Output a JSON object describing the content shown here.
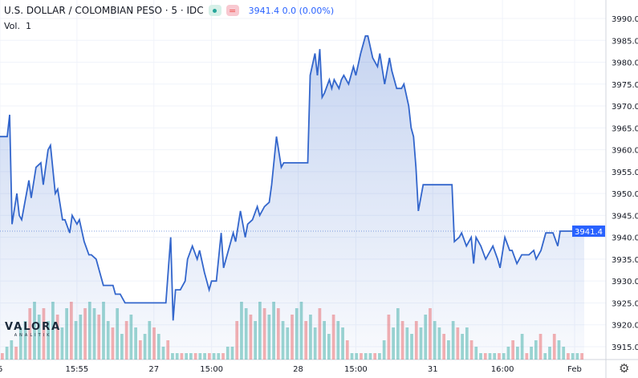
{
  "header": {
    "title": "U.S. DOLLAR / COLOMBIAN PESO · 5 · IDC",
    "last": "3941.4",
    "change": "0.0 (0.00%)",
    "volume_label": "Vol.",
    "volume_value": "1",
    "market_status": "open",
    "colors": {
      "line": "#3366cc",
      "up": "#26a69a",
      "down": "#ef5350",
      "accent": "#2962ff"
    }
  },
  "logo": {
    "name": "VALORA",
    "sub": "ANALITIK"
  },
  "settings_icon": "gear-icon",
  "chart_data": {
    "type": "area",
    "title": "U.S. DOLLAR / COLOMBIAN PESO · 5 · IDC",
    "ylim": [
      3912,
      3992
    ],
    "yticks": [
      3990.0,
      3985.0,
      3980.0,
      3975.0,
      3970.0,
      3965.0,
      3960.0,
      3955.0,
      3950.0,
      3945.0,
      3940.0,
      3935.0,
      3930.0,
      3925.0,
      3920.0,
      3915.0
    ],
    "xtick_labels": [
      {
        "label": "6",
        "bar": 0
      },
      {
        "label": "15:55",
        "bar": 32
      },
      {
        "label": "27",
        "bar": 64
      },
      {
        "label": "15:00",
        "bar": 88
      },
      {
        "label": "28",
        "bar": 124
      },
      {
        "label": "15:00",
        "bar": 148
      },
      {
        "label": "31",
        "bar": 180
      },
      {
        "label": "16:00",
        "bar": 209
      },
      {
        "label": "Feb",
        "bar": 239
      }
    ],
    "last_value": 3941.4,
    "grid": true,
    "series": [
      {
        "values": [
          [
            0,
            3963
          ],
          [
            3,
            3963
          ],
          [
            4,
            3968
          ],
          [
            5,
            3943
          ],
          [
            7,
            3950
          ],
          [
            8,
            3945
          ],
          [
            9,
            3944
          ],
          [
            12,
            3953
          ],
          [
            13,
            3949
          ],
          [
            15,
            3956
          ],
          [
            17,
            3957
          ],
          [
            18,
            3952
          ],
          [
            20,
            3960
          ],
          [
            21,
            3961
          ],
          [
            23,
            3950
          ],
          [
            24,
            3951
          ],
          [
            26,
            3944
          ],
          [
            27,
            3944
          ],
          [
            29,
            3941
          ],
          [
            30,
            3945
          ],
          [
            32,
            3943
          ],
          [
            33,
            3944
          ],
          [
            35,
            3939
          ],
          [
            37,
            3936
          ],
          [
            38,
            3936
          ],
          [
            40,
            3935
          ],
          [
            42,
            3931
          ],
          [
            43,
            3929
          ],
          [
            47,
            3929
          ],
          [
            48,
            3927
          ],
          [
            50,
            3927
          ],
          [
            52,
            3925
          ],
          [
            53,
            3925
          ],
          [
            68,
            3925
          ],
          [
            69,
            3925
          ],
          [
            71,
            3940
          ],
          [
            72,
            3921
          ],
          [
            73,
            3928
          ],
          [
            75,
            3928
          ],
          [
            77,
            3930
          ],
          [
            78,
            3935
          ],
          [
            80,
            3938
          ],
          [
            82,
            3935
          ],
          [
            83,
            3937
          ],
          [
            85,
            3932
          ],
          [
            87,
            3928
          ],
          [
            88,
            3930
          ],
          [
            90,
            3930
          ],
          [
            92,
            3941
          ],
          [
            93,
            3933
          ],
          [
            95,
            3937
          ],
          [
            97,
            3941
          ],
          [
            98,
            3939
          ],
          [
            100,
            3946
          ],
          [
            102,
            3940
          ],
          [
            103,
            3943
          ],
          [
            105,
            3944
          ],
          [
            107,
            3947
          ],
          [
            108,
            3945
          ],
          [
            110,
            3947
          ],
          [
            112,
            3948
          ],
          [
            113,
            3952
          ],
          [
            115,
            3963
          ],
          [
            117,
            3956
          ],
          [
            118,
            3957
          ],
          [
            128,
            3957
          ],
          [
            129,
            3977
          ],
          [
            131,
            3982
          ],
          [
            132,
            3977
          ],
          [
            133,
            3983
          ],
          [
            134,
            3972
          ],
          [
            135,
            3973
          ],
          [
            137,
            3976
          ],
          [
            138,
            3974
          ],
          [
            139,
            3976
          ],
          [
            141,
            3974
          ],
          [
            142,
            3976
          ],
          [
            143,
            3977
          ],
          [
            145,
            3975
          ],
          [
            147,
            3979
          ],
          [
            148,
            3977
          ],
          [
            150,
            3982
          ],
          [
            152,
            3986
          ],
          [
            153,
            3986
          ],
          [
            155,
            3981
          ],
          [
            157,
            3979
          ],
          [
            158,
            3982
          ],
          [
            160,
            3975
          ],
          [
            162,
            3981
          ],
          [
            163,
            3978
          ],
          [
            165,
            3974
          ],
          [
            167,
            3974
          ],
          [
            168,
            3975
          ],
          [
            170,
            3970
          ],
          [
            171,
            3965
          ],
          [
            172,
            3963
          ],
          [
            173,
            3956
          ],
          [
            174,
            3946
          ],
          [
            176,
            3952
          ],
          [
            188,
            3952
          ],
          [
            189,
            3939
          ],
          [
            191,
            3940
          ],
          [
            192,
            3941
          ],
          [
            194,
            3938
          ],
          [
            196,
            3940
          ],
          [
            197,
            3934
          ],
          [
            198,
            3940
          ],
          [
            200,
            3938
          ],
          [
            202,
            3935
          ],
          [
            203,
            3936
          ],
          [
            205,
            3938
          ],
          [
            207,
            3935
          ],
          [
            208,
            3933
          ],
          [
            210,
            3940
          ],
          [
            212,
            3937
          ],
          [
            213,
            3937
          ],
          [
            215,
            3934
          ],
          [
            217,
            3936
          ],
          [
            220,
            3936
          ],
          [
            222,
            3937
          ],
          [
            223,
            3935
          ],
          [
            225,
            3937
          ],
          [
            227,
            3941
          ],
          [
            230,
            3941
          ],
          [
            232,
            3938
          ],
          [
            233,
            3941.4
          ],
          [
            243,
            3941.4
          ]
        ]
      }
    ],
    "volume": [
      1,
      2,
      3,
      2,
      5,
      6,
      8,
      9,
      7,
      8,
      6,
      9,
      7,
      5,
      8,
      9,
      6,
      7,
      8,
      9,
      8,
      7,
      9,
      6,
      5,
      8,
      4,
      6,
      7,
      5,
      3,
      4,
      6,
      5,
      4,
      2,
      3,
      1,
      1,
      1,
      1,
      1,
      1,
      1,
      1,
      1,
      1,
      1,
      1,
      2,
      2,
      6,
      9,
      8,
      7,
      6,
      9,
      8,
      7,
      9,
      8,
      6,
      5,
      7,
      8,
      9,
      6,
      7,
      5,
      8,
      6,
      4,
      7,
      6,
      5,
      3,
      1,
      1,
      1,
      1,
      1,
      1,
      1,
      3,
      7,
      5,
      8,
      6,
      5,
      4,
      6,
      5,
      7,
      8,
      6,
      5,
      4,
      3,
      6,
      5,
      4,
      5,
      3,
      2,
      1,
      1,
      1,
      1,
      1,
      1,
      2,
      3,
      2,
      4,
      1,
      2,
      3,
      4,
      1,
      2,
      4,
      3,
      2,
      1,
      1,
      1,
      1
    ]
  }
}
